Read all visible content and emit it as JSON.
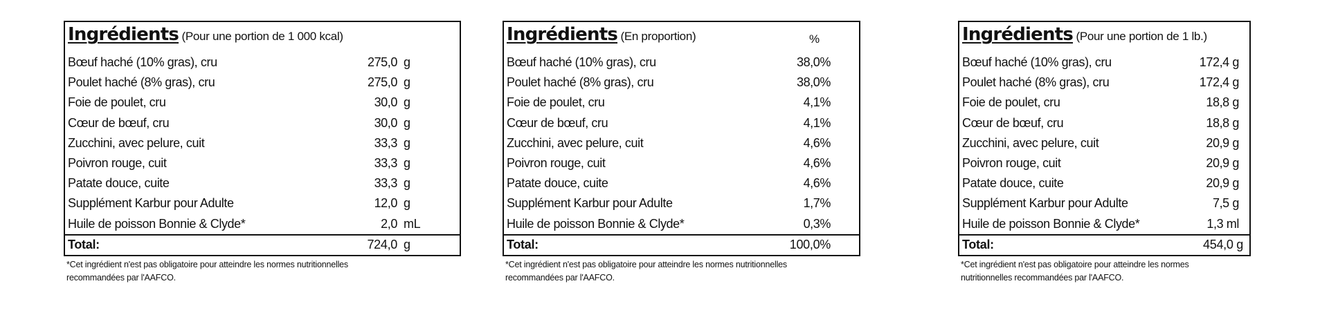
{
  "tables": [
    {
      "title": "Ingrédients",
      "subtitle": " (Pour une portion de 1 000 kcal)",
      "column_header": "",
      "rows": [
        {
          "name": "Bœuf haché (10% gras), cru",
          "amount": "275,0",
          "unit": "g"
        },
        {
          "name": "Poulet haché (8% gras), cru",
          "amount": "275,0",
          "unit": "g"
        },
        {
          "name": "Foie de poulet, cru",
          "amount": "30,0",
          "unit": "g"
        },
        {
          "name": "Cœur de bœuf, cru",
          "amount": "30,0",
          "unit": "g"
        },
        {
          "name": "Zucchini, avec pelure, cuit",
          "amount": "33,3",
          "unit": "g"
        },
        {
          "name": "Poivron rouge, cuit",
          "amount": "33,3",
          "unit": "g"
        },
        {
          "name": "Patate douce, cuite",
          "amount": "33,3",
          "unit": "g"
        },
        {
          "name": "Supplément Karbur pour Adulte",
          "amount": "12,0",
          "unit": "g"
        },
        {
          "name": "Huile de poisson Bonnie & Clyde*",
          "amount": "2,0",
          "unit": "mL"
        }
      ],
      "total": {
        "label": "Total:",
        "amount": "724,0",
        "unit": "g"
      },
      "footnote_lines": [
        "*Cet ingrédient n'est pas obligatoire pour atteindre les normes nutritionnelles",
        "recommandées par l'AAFCO."
      ]
    },
    {
      "title": "Ingrédients",
      "subtitle": " (En proportion)",
      "column_header": "%",
      "rows": [
        {
          "name": "Bœuf haché (10% gras), cru",
          "amount": "38,0%",
          "unit": ""
        },
        {
          "name": "Poulet haché (8% gras), cru",
          "amount": "38,0%",
          "unit": ""
        },
        {
          "name": "Foie de poulet, cru",
          "amount": "4,1%",
          "unit": ""
        },
        {
          "name": "Cœur de bœuf, cru",
          "amount": "4,1%",
          "unit": ""
        },
        {
          "name": "Zucchini, avec pelure, cuit",
          "amount": "4,6%",
          "unit": ""
        },
        {
          "name": "Poivron rouge, cuit",
          "amount": "4,6%",
          "unit": ""
        },
        {
          "name": "Patate douce, cuite",
          "amount": "4,6%",
          "unit": ""
        },
        {
          "name": "Supplément Karbur pour Adulte",
          "amount": "1,7%",
          "unit": ""
        },
        {
          "name": "Huile de poisson Bonnie & Clyde*",
          "amount": "0,3%",
          "unit": ""
        }
      ],
      "total": {
        "label": "Total:",
        "amount": "100,0%",
        "unit": ""
      },
      "footnote_lines": [
        "*Cet ingrédient n'est pas obligatoire pour atteindre les normes nutritionnelles",
        "recommandées par l'AAFCO."
      ]
    },
    {
      "title": "Ingrédients",
      "subtitle": " (Pour une portion de 1 lb.)",
      "column_header": "",
      "rows": [
        {
          "name": "Bœuf haché (10% gras), cru",
          "amount": "172,4 g",
          "unit": ""
        },
        {
          "name": "Poulet haché (8% gras), cru",
          "amount": "172,4 g",
          "unit": ""
        },
        {
          "name": "Foie de poulet, cru",
          "amount": "18,8 g",
          "unit": ""
        },
        {
          "name": "Cœur de bœuf, cru",
          "amount": "18,8 g",
          "unit": ""
        },
        {
          "name": "Zucchini, avec pelure, cuit",
          "amount": "20,9 g",
          "unit": ""
        },
        {
          "name": "Poivron rouge, cuit",
          "amount": "20,9 g",
          "unit": ""
        },
        {
          "name": "Patate douce, cuite",
          "amount": "20,9 g",
          "unit": ""
        },
        {
          "name": "Supplément Karbur pour Adulte",
          "amount": "7,5 g",
          "unit": ""
        },
        {
          "name": "Huile de poisson Bonnie & Clyde*",
          "amount": "1,3 ml",
          "unit": ""
        }
      ],
      "total": {
        "label": "Total:",
        "amount": "454,0 g",
        "unit": ""
      },
      "footnote_lines": [
        "*Cet ingrédient n'est pas obligatoire pour atteindre les normes",
        "nutritionnelles recommandées par l'AAFCO."
      ]
    }
  ]
}
